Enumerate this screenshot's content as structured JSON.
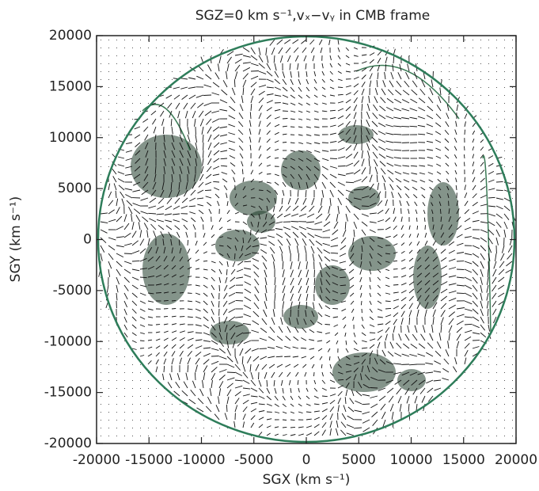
{
  "chart_data": {
    "type": "vector_field",
    "title": "SGZ=0 km s⁻¹,vₓ−vᵧ in CMB frame",
    "xlabel": "SGX (km s⁻¹)",
    "ylabel": "SGY (km s⁻¹)",
    "xlim": [
      -20000,
      20000
    ],
    "ylim": [
      -20000,
      20000
    ],
    "xticks": [
      -20000,
      -15000,
      -10000,
      -5000,
      0,
      5000,
      10000,
      15000,
      20000
    ],
    "yticks": [
      -20000,
      -15000,
      -10000,
      -5000,
      0,
      5000,
      10000,
      15000,
      20000
    ]
  }
}
